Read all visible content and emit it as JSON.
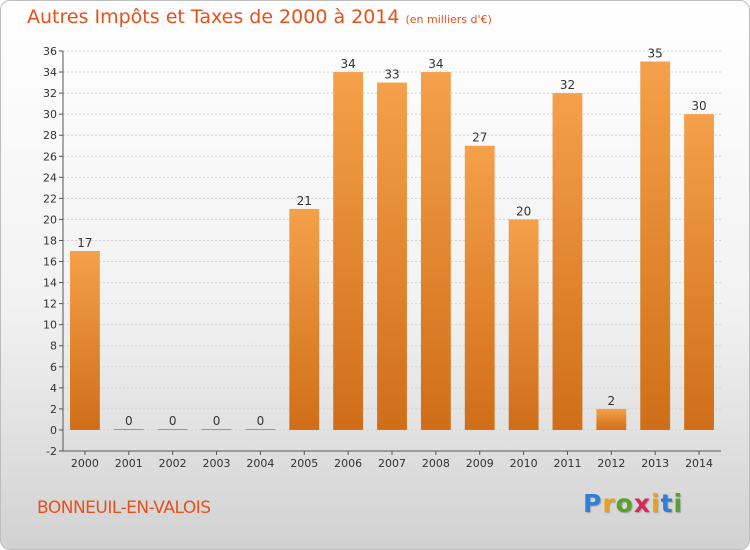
{
  "chart_data": {
    "type": "bar",
    "title": "Autres Impôts et Taxes de 2000 à 2014",
    "subtitle": "(en milliers d'€)",
    "categories": [
      "2000",
      "2001",
      "2002",
      "2003",
      "2004",
      "2005",
      "2006",
      "2007",
      "2008",
      "2009",
      "2010",
      "2011",
      "2012",
      "2013",
      "2014"
    ],
    "values": [
      17,
      0,
      0,
      0,
      0,
      21,
      34,
      33,
      34,
      27,
      20,
      32,
      2,
      35,
      30
    ],
    "data_labels": [
      "17",
      "0",
      "0",
      "0",
      "0",
      "21",
      "34",
      "33",
      "34",
      "27",
      "20",
      "32",
      "2",
      "35",
      "30"
    ],
    "yticks": [
      "-2",
      "0",
      "2",
      "4",
      "6",
      "8",
      "10",
      "12",
      "14",
      "16",
      "18",
      "20",
      "22",
      "24",
      "26",
      "28",
      "30",
      "32",
      "34",
      "36"
    ],
    "ylim": [
      -2,
      36
    ],
    "xlabel": "",
    "ylabel": "",
    "grid": true,
    "bar_color": "#f5a04a",
    "bar_color_dark": "#d06e18"
  },
  "commune": "BONNEUIL-EN-VALOIS",
  "logo": {
    "letters": [
      "P",
      "r",
      "o",
      "x",
      "i",
      "t",
      "i"
    ],
    "colors": [
      "#2f7fd6",
      "#e8a020",
      "#5aa02c",
      "#d62a5a",
      "#e8a020",
      "#2f7fd6",
      "#5aa02c"
    ]
  }
}
